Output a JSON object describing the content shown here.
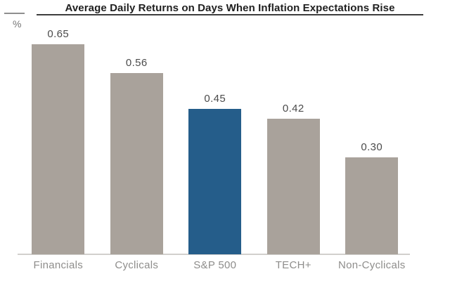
{
  "chart_data": {
    "type": "bar",
    "title": "Average Daily Returns on Days When Inflation Expectations Rise",
    "ylabel": "%",
    "xlabel": "",
    "categories": [
      "Financials",
      "Cyclicals",
      "S&P 500",
      "TECH+",
      "Non-Cyclicals"
    ],
    "values": [
      0.65,
      0.56,
      0.45,
      0.42,
      0.3
    ],
    "value_labels": [
      "0.65",
      "0.56",
      "0.45",
      "0.42",
      "0.30"
    ],
    "bar_colors": [
      "#a9a29b",
      "#a9a29b",
      "#255d8a",
      "#a9a29b",
      "#a9a29b"
    ],
    "highlighted_category": "S&P 500",
    "ylim": [
      0,
      0.65
    ],
    "grid": false,
    "legend": false,
    "colors": {
      "bar_default": "#a9a29b",
      "bar_highlight": "#255d8a",
      "title_text": "#1f1f1f",
      "title_rule": "#3d3d3d",
      "top_tick": "#8f8f8f",
      "value_label": "#4b4b4b",
      "category_label": "#8e8d8b",
      "axis_line": "#d2d0cd",
      "background": "#ffffff"
    }
  }
}
